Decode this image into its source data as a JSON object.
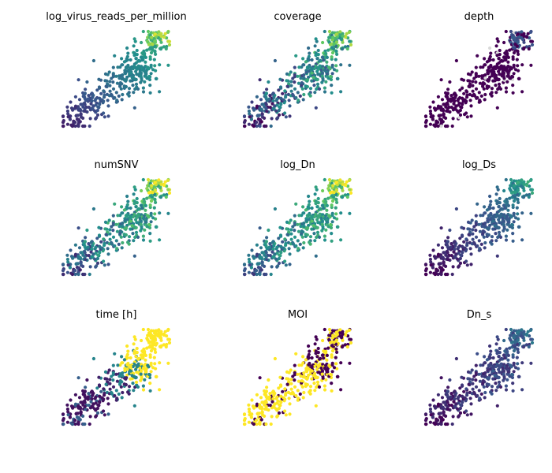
{
  "chart_data": {
    "type": "scatter",
    "layout": "3x3 grid of UMAP-style scatter panels, no axes",
    "colormap": "viridis",
    "colormap_stops": [
      "#440154",
      "#3b528b",
      "#21918c",
      "#5ec962",
      "#fde725"
    ],
    "missing_color": "#d9d9d9",
    "axes_visible": false,
    "grid": false,
    "panels": [
      {
        "title": "log_virus_reads_per_million",
        "value_range": [
          0,
          1
        ],
        "pattern": "gradient",
        "t_offset": 0.1,
        "gain": 0.55,
        "noise": 0.08,
        "hot_top": 0.35
      },
      {
        "title": "coverage",
        "value_range": [
          0,
          1
        ],
        "pattern": "gradient_noisy",
        "t_offset": 0.15,
        "gain": 0.5,
        "noise": 0.45,
        "hot_top": 0.1
      },
      {
        "title": "depth",
        "value_range": [
          0,
          1
        ],
        "pattern": "dark_with_top",
        "t_offset": 0.0,
        "gain": 0.15,
        "noise": 0.05,
        "hot_top": 0.25
      },
      {
        "title": "numSNV",
        "value_range": [
          0,
          1
        ],
        "pattern": "gradient_noisy",
        "t_offset": 0.25,
        "gain": 0.45,
        "noise": 0.4,
        "hot_top": 0.35
      },
      {
        "title": "log_Dn",
        "value_range": [
          0,
          1
        ],
        "pattern": "gradient_noisy",
        "t_offset": 0.3,
        "gain": 0.4,
        "noise": 0.35,
        "hot_top": 0.35
      },
      {
        "title": "log_Ds",
        "value_range": [
          0,
          1
        ],
        "pattern": "gradient",
        "t_offset": 0.02,
        "gain": 0.45,
        "noise": 0.15,
        "hot_top": 0.15
      },
      {
        "title": "time [h]",
        "value_range": [
          0,
          1
        ],
        "pattern": "time",
        "t_offset": 0.0,
        "gain": 1.0,
        "noise": 0.0,
        "hot_top": 0.0
      },
      {
        "title": "MOI",
        "value_range": [
          0,
          1
        ],
        "pattern": "moi",
        "t_offset": 0.0,
        "gain": 1.0,
        "noise": 0.0,
        "hot_top": 0.0
      },
      {
        "title": "Dn_s",
        "value_range": [
          0,
          1
        ],
        "pattern": "gradient_noisy",
        "t_offset": 0.05,
        "gain": 0.25,
        "noise": 0.2,
        "hot_top": 0.05
      }
    ],
    "embedding": {
      "x_range": [
        0,
        1
      ],
      "y_range": [
        0,
        1
      ],
      "n_points": 430,
      "seed": 7,
      "shape": "diagonal cloud from lower-left to upper-right with a dense cluster in the top-right"
    }
  }
}
